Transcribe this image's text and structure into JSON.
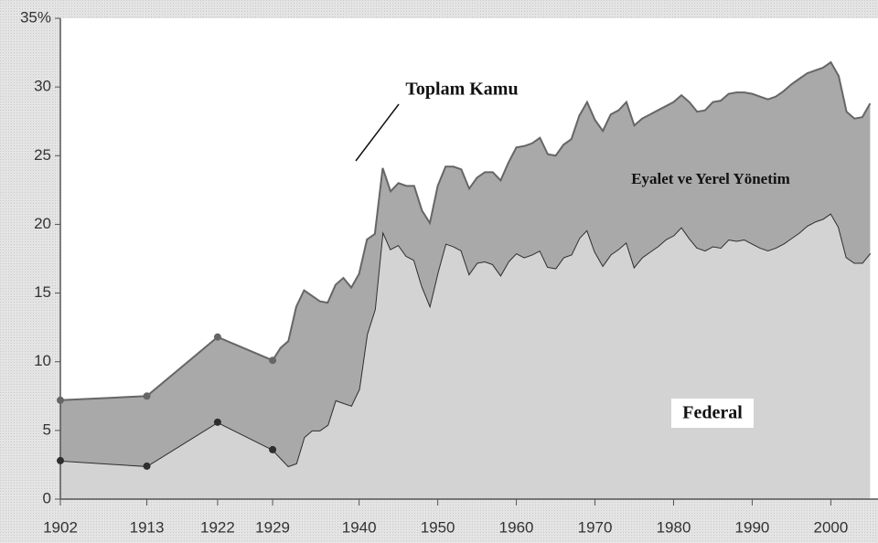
{
  "chart_data": {
    "type": "stacked_area",
    "x": [
      1902,
      1913,
      1922,
      1929,
      1930,
      1931,
      1932,
      1933,
      1934,
      1935,
      1936,
      1937,
      1938,
      1939,
      1940,
      1941,
      1942,
      1943,
      1944,
      1945,
      1946,
      1947,
      1948,
      1949,
      1950,
      1951,
      1952,
      1953,
      1954,
      1955,
      1956,
      1957,
      1958,
      1959,
      1960,
      1961,
      1962,
      1963,
      1964,
      1965,
      1966,
      1967,
      1968,
      1969,
      1970,
      1971,
      1972,
      1973,
      1974,
      1975,
      1976,
      1977,
      1978,
      1979,
      1980,
      1981,
      1982,
      1983,
      1984,
      1985,
      1986,
      1987,
      1988,
      1989,
      1990,
      1991,
      1992,
      1993,
      1994,
      1995,
      1996,
      1997,
      1998,
      1999,
      2000,
      2001,
      2002,
      2003,
      2004,
      2005
    ],
    "series": [
      {
        "name": "Federal",
        "color": "#d3d3d3",
        "line_color": "#2e2e2e",
        "values": [
          2.8,
          2.4,
          5.6,
          3.6,
          3.0,
          2.4,
          2.6,
          4.5,
          5.0,
          5.0,
          5.4,
          7.2,
          7.0,
          6.8,
          8.0,
          12.0,
          13.8,
          19.5,
          18.2,
          18.5,
          17.7,
          17.4,
          15.5,
          14.1,
          16.5,
          18.6,
          18.4,
          18.1,
          16.4,
          17.2,
          17.3,
          17.1,
          16.3,
          17.3,
          17.9,
          17.6,
          17.8,
          18.1,
          16.9,
          16.8,
          17.6,
          17.8,
          19.0,
          19.6,
          18.0,
          17.0,
          17.8,
          18.2,
          18.7,
          16.9,
          17.6,
          18.0,
          18.4,
          18.9,
          19.2,
          19.8,
          19.0,
          18.3,
          18.1,
          18.4,
          18.3,
          18.9,
          18.8,
          18.9,
          18.6,
          18.3,
          18.1,
          18.3,
          18.6,
          19.0,
          19.4,
          19.9,
          20.2,
          20.4,
          20.8,
          19.8,
          17.6,
          17.2,
          17.2,
          17.9
        ]
      },
      {
        "name": "Eyalet ve Yerel Yönetim",
        "color": "#a9a9a9",
        "line_color": "#666666",
        "values": [
          4.4,
          5.1,
          6.2,
          6.5,
          8.0,
          9.1,
          11.4,
          10.7,
          9.8,
          9.4,
          8.9,
          8.4,
          9.1,
          8.6,
          8.4,
          6.9,
          5.5,
          4.6,
          4.2,
          4.5,
          5.1,
          5.4,
          5.5,
          6.0,
          6.3,
          5.6,
          5.8,
          5.9,
          6.2,
          6.2,
          6.5,
          6.7,
          6.9,
          7.2,
          7.7,
          8.1,
          8.1,
          8.2,
          8.2,
          8.2,
          8.2,
          8.4,
          8.9,
          9.3,
          9.6,
          9.8,
          10.2,
          10.1,
          10.2,
          10.3,
          10.1,
          10.0,
          9.9,
          9.7,
          9.7,
          9.6,
          9.9,
          9.9,
          10.2,
          10.5,
          10.7,
          10.6,
          10.8,
          10.7,
          10.9,
          11.0,
          11.0,
          11.0,
          11.1,
          11.2,
          11.2,
          11.1,
          11.0,
          11.0,
          11.0,
          11.0,
          10.6,
          10.5,
          10.6,
          10.9
        ]
      }
    ],
    "markers": [
      1902,
      1913,
      1922,
      1929
    ],
    "annotation": "Toplam Kamu",
    "xlim": [
      1902,
      2006
    ],
    "xticks": [
      1902,
      1913,
      1922,
      1929,
      1940,
      1950,
      1960,
      1970,
      1980,
      1990,
      2000
    ],
    "ylim": [
      0,
      35
    ],
    "yticks": [
      0,
      5,
      10,
      15,
      20,
      25,
      30,
      {
        "value": 35,
        "label": "35%"
      }
    ]
  }
}
